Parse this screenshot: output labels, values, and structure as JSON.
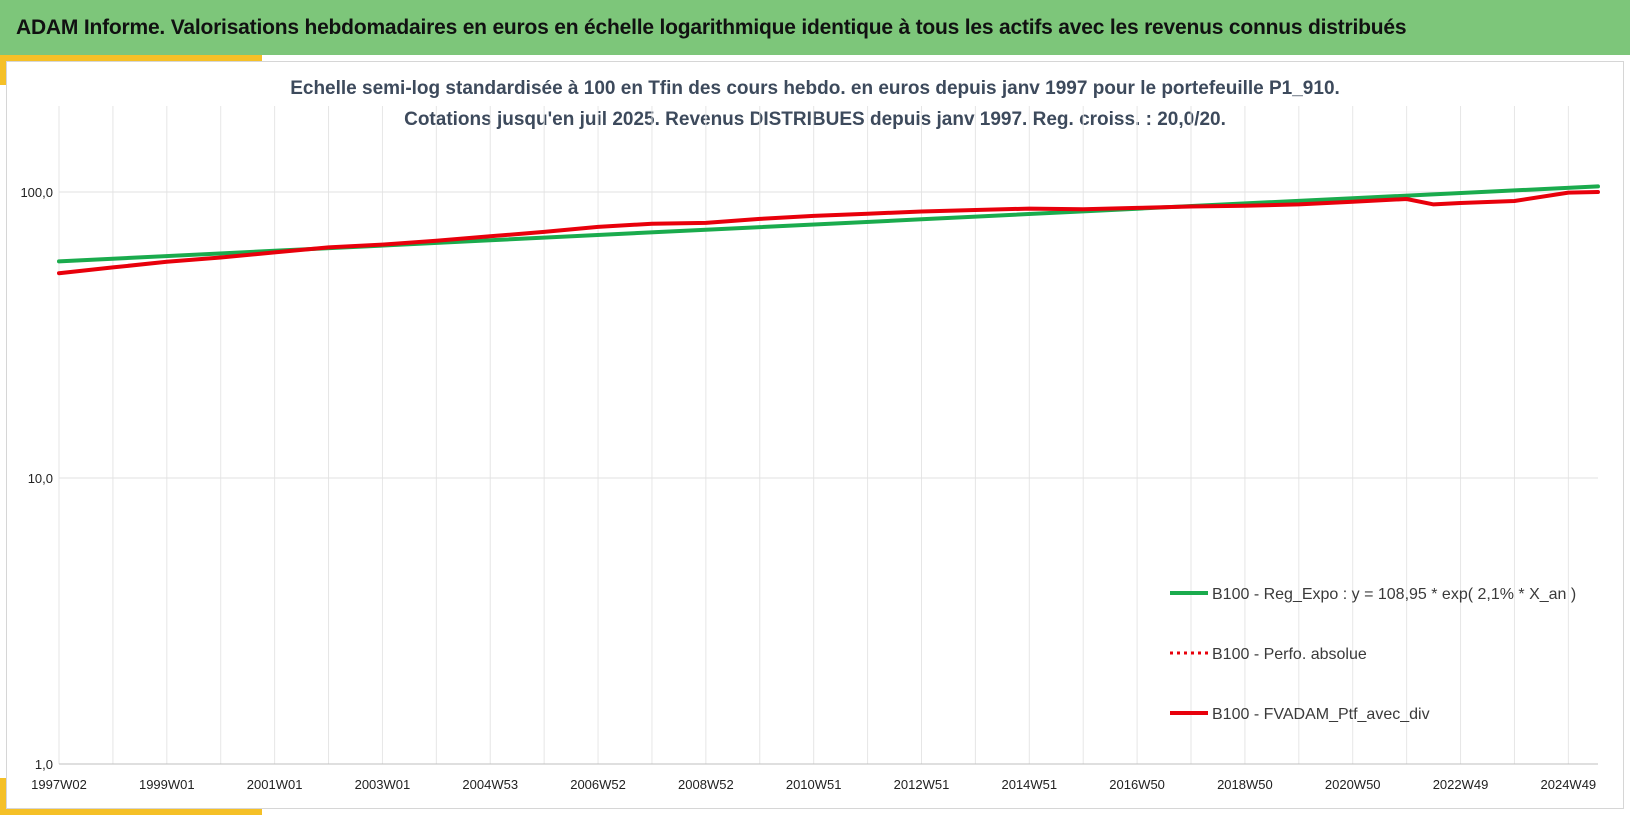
{
  "header": {
    "title": "ADAM Informe. Valorisations hebdomadaires en euros en échelle logarithmique identique à tous les actifs avec les revenus connus distribués"
  },
  "chart_data": {
    "type": "line",
    "subtitle_line1": "Echelle semi-log standardisée à 100 en Tfin des cours hebdo. en euros depuis janv 1997 pour le portefeuille P1_910.",
    "subtitle_line2": "Cotations jusqu'en juil 2025. Revenus DISTRIBUES depuis janv 1997. Reg. croiss. : 20,0/20.",
    "y_scale": "log",
    "ylim": [
      1,
      200
    ],
    "y_ticks": [
      {
        "value": 100,
        "label": "100,0"
      },
      {
        "value": 10,
        "label": "10,0"
      },
      {
        "value": 1,
        "label": "1,0"
      }
    ],
    "x_range": [
      1997.0,
      2025.55
    ],
    "x_ticks": [
      {
        "label": "1997W02",
        "x": 1997.0
      },
      {
        "label": "1999W01",
        "x": 1999.0
      },
      {
        "label": "2001W01",
        "x": 2001.0
      },
      {
        "label": "2003W01",
        "x": 2003.0
      },
      {
        "label": "2004W53",
        "x": 2005.0
      },
      {
        "label": "2006W52",
        "x": 2007.0
      },
      {
        "label": "2008W52",
        "x": 2009.0
      },
      {
        "label": "2010W51",
        "x": 2011.0
      },
      {
        "label": "2012W51",
        "x": 2013.0
      },
      {
        "label": "2014W51",
        "x": 2015.0
      },
      {
        "label": "2016W50",
        "x": 2017.0
      },
      {
        "label": "2018W50",
        "x": 2019.0
      },
      {
        "label": "2020W50",
        "x": 2021.0
      },
      {
        "label": "2022W49",
        "x": 2023.0
      },
      {
        "label": "2024W49",
        "x": 2025.0
      }
    ],
    "grid": true,
    "legend_position": "bottom-right",
    "series": [
      {
        "name": "B100 - Reg_Expo : y = 108,95 * exp( 2,1% *  X_an )",
        "color": "#1aab4d",
        "style": "solid",
        "x": [
          1997.0,
          2001.0,
          2005.0,
          2009.0,
          2013.0,
          2017.0,
          2021.0,
          2025.55
        ],
        "values": [
          57.2,
          62.3,
          67.8,
          73.8,
          80.3,
          87.4,
          95.1,
          104.6
        ]
      },
      {
        "name": "B100 - Perfo. absolue",
        "color": "#e8000b",
        "style": "dotted",
        "x": [],
        "values": []
      },
      {
        "name": "B100 - FVADAM_Ptf_avec_div",
        "color": "#e8000b",
        "style": "solid",
        "x": [
          1997.0,
          1998.0,
          1999.0,
          2000.0,
          2001.0,
          2002.0,
          2003.0,
          2004.0,
          2005.0,
          2006.0,
          2007.0,
          2008.0,
          2009.0,
          2010.0,
          2011.0,
          2012.0,
          2013.0,
          2014.0,
          2015.0,
          2016.0,
          2017.0,
          2018.0,
          2019.0,
          2020.0,
          2021.0,
          2022.0,
          2022.5,
          2023.0,
          2024.0,
          2025.0,
          2025.55
        ],
        "values": [
          52.0,
          54.5,
          57.0,
          59.0,
          61.5,
          64.0,
          65.5,
          67.5,
          70.0,
          72.5,
          75.5,
          77.5,
          78.0,
          80.5,
          82.5,
          84.0,
          85.5,
          86.5,
          87.5,
          87.0,
          88.0,
          89.0,
          89.5,
          90.5,
          92.5,
          94.5,
          90.5,
          91.5,
          93.0,
          99.5,
          100.0
        ]
      }
    ]
  }
}
